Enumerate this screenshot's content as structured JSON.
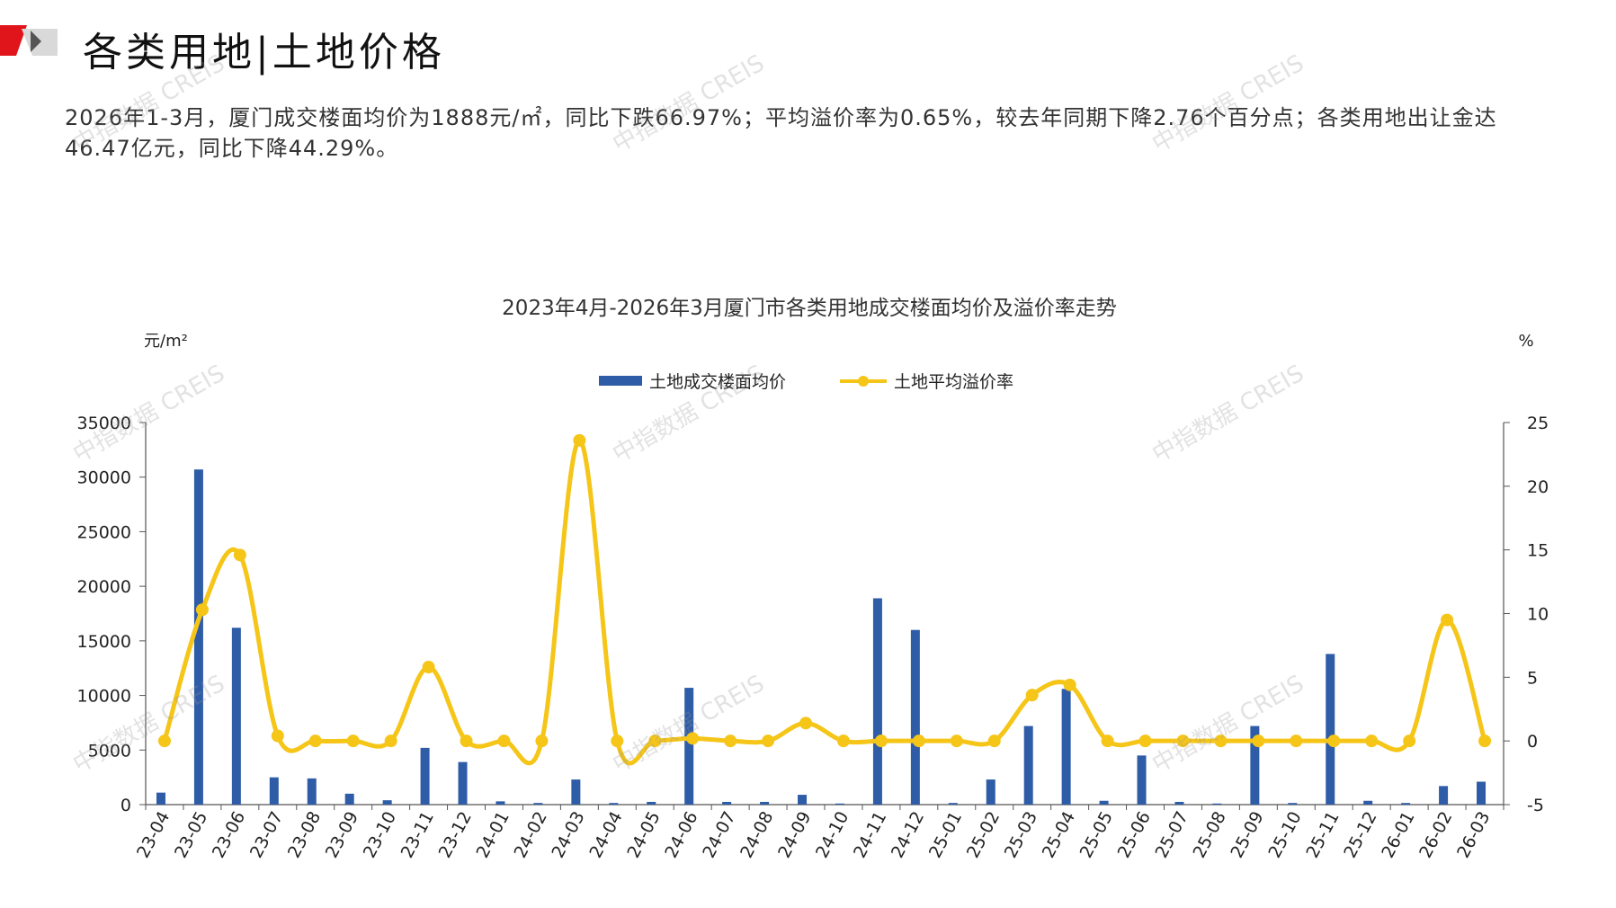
{
  "page": {
    "title": "各类用地|土地价格",
    "summary": "2026年1-3月，厦门成交楼面均价为1888元/㎡，同比下跌66.97%；平均溢价率为0.65%，较去年同期下降2.76个百分点；各类用地出让金达46.47亿元，同比下降44.29%。",
    "watermark": "中指数据 CREIS"
  },
  "colors": {
    "bar": "#2E5CA6",
    "line": "#F5C518",
    "accent": "#E0151C"
  },
  "chart_data": {
    "type": "bar",
    "title": "2023年4月-2026年3月厦门市各类用地成交楼面均价及溢价率走势",
    "y_left_label": "元/m²",
    "y_right_label": "%",
    "y_left_lim": [
      0,
      35000
    ],
    "y_left_ticks": [
      0,
      5000,
      10000,
      15000,
      20000,
      25000,
      30000,
      35000
    ],
    "y_right_lim": [
      -5,
      25
    ],
    "y_right_ticks": [
      -5,
      0,
      5,
      10,
      15,
      20,
      25
    ],
    "legend_position": "top-center",
    "categories": [
      "23-04",
      "23-05",
      "23-06",
      "23-07",
      "23-08",
      "23-09",
      "23-10",
      "23-11",
      "23-12",
      "24-01",
      "24-02",
      "24-03",
      "24-04",
      "24-05",
      "24-06",
      "24-07",
      "24-08",
      "24-09",
      "24-10",
      "24-11",
      "24-12",
      "25-01",
      "25-02",
      "25-03",
      "25-04",
      "25-05",
      "25-06",
      "25-07",
      "25-08",
      "25-09",
      "25-10",
      "25-11",
      "25-12",
      "26-01",
      "26-02",
      "26-03"
    ],
    "series": [
      {
        "name": "土地成交楼面均价",
        "type": "bar",
        "axis": "left",
        "values": [
          1100,
          30700,
          16200,
          2500,
          2400,
          1000,
          400,
          5200,
          3900,
          300,
          150,
          2300,
          150,
          250,
          10700,
          250,
          250,
          900,
          100,
          18900,
          16000,
          150,
          2300,
          7200,
          10600,
          350,
          4500,
          250,
          100,
          7200,
          150,
          13800,
          350,
          150,
          1700,
          2100
        ]
      },
      {
        "name": "土地平均溢价率",
        "type": "line",
        "axis": "right",
        "values": [
          0,
          10.3,
          14.6,
          0.4,
          0,
          0,
          0,
          5.8,
          0,
          0,
          0,
          23.6,
          0,
          0,
          0.2,
          0,
          0,
          1.4,
          0,
          0,
          0,
          0,
          0,
          3.6,
          4.4,
          0,
          0,
          0,
          0,
          0,
          0,
          0,
          0,
          0,
          9.5,
          0
        ]
      }
    ]
  }
}
